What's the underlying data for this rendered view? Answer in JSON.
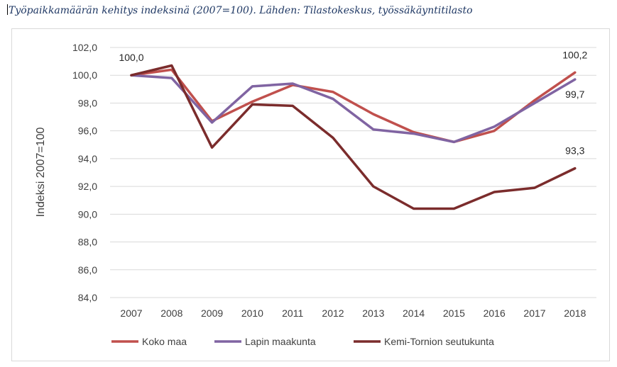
{
  "caption": "Työpaikkamäärän kehitys indeksinä (2007=100). Lähden: Tilastokeskus, työssäkäyntitilasto",
  "chart_data": {
    "type": "line",
    "title": "",
    "xlabel": "",
    "ylabel": "Indeksi 2007=100",
    "ylim": [
      84,
      102
    ],
    "yticks": [
      "84,0",
      "86,0",
      "88,0",
      "90,0",
      "92,0",
      "94,0",
      "96,0",
      "98,0",
      "100,0",
      "102,0"
    ],
    "x": [
      "2007",
      "2008",
      "2009",
      "2010",
      "2011",
      "2012",
      "2013",
      "2014",
      "2015",
      "2016",
      "2017",
      "2018"
    ],
    "grid": "horizontal",
    "legend_position": "bottom",
    "series": [
      {
        "name": "Koko maa",
        "color": "#c0504d",
        "values": [
          100.0,
          100.4,
          96.7,
          98.1,
          99.3,
          98.8,
          97.2,
          95.9,
          95.2,
          96.0,
          98.2,
          100.2
        ]
      },
      {
        "name": "Lapin maakunta",
        "color": "#8064a2",
        "values": [
          100.0,
          99.8,
          96.6,
          99.2,
          99.4,
          98.3,
          96.1,
          95.8,
          95.2,
          96.3,
          98.0,
          99.7
        ]
      },
      {
        "name": "Kemi-Tornion seutukunta",
        "color": "#7b2c2c",
        "values": [
          100.0,
          100.7,
          94.8,
          97.9,
          97.8,
          95.5,
          92.0,
          90.4,
          90.4,
          91.6,
          91.9,
          93.3
        ]
      }
    ],
    "data_labels": [
      {
        "text": "100,0",
        "series": 2,
        "index": 0,
        "pos": "above"
      },
      {
        "text": "100,2",
        "series": 0,
        "index": 11,
        "pos": "above"
      },
      {
        "text": "99,7",
        "series": 1,
        "index": 11,
        "pos": "below"
      },
      {
        "text": "93,3",
        "series": 2,
        "index": 11,
        "pos": "above"
      }
    ]
  }
}
